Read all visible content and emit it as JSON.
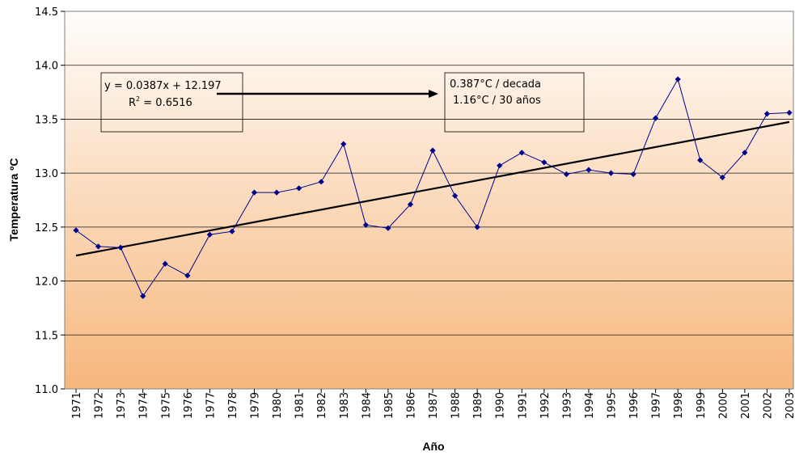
{
  "chart_data": {
    "type": "line",
    "xlabel": "Año",
    "ylabel": "Temperatura ºC",
    "ylim": [
      11.0,
      14.5
    ],
    "yticks": [
      "11.0",
      "11.5",
      "12.0",
      "12.5",
      "13.0",
      "13.5",
      "14.0",
      "14.5"
    ],
    "grid": true,
    "background": "orange gradient (light at top, orange at bottom)",
    "series_color": "#00008b",
    "trend_color": "#000000",
    "categories": [
      "1971",
      "1972",
      "1973",
      "1974",
      "1975",
      "1976",
      "1977",
      "1978",
      "1979",
      "1980",
      "1981",
      "1982",
      "1983",
      "1984",
      "1985",
      "1986",
      "1987",
      "1988",
      "1989",
      "1990",
      "1991",
      "1992",
      "1993",
      "1994",
      "1995",
      "1996",
      "1997",
      "1998",
      "1999",
      "2000",
      "2001",
      "2002",
      "2003"
    ],
    "series": [
      {
        "values": [
          12.47,
          12.32,
          12.31,
          11.86,
          12.16,
          12.05,
          12.43,
          12.46,
          12.82,
          12.82,
          12.86,
          12.92,
          13.27,
          12.52,
          12.49,
          12.71,
          13.21,
          12.79,
          12.5,
          13.07,
          13.19,
          13.1,
          12.99,
          13.03,
          13.0,
          12.99,
          13.51,
          13.87,
          13.12,
          12.96,
          13.19,
          13.55,
          13.56
        ]
      }
    ],
    "trendline": {
      "start": {
        "x": "1971",
        "y": 12.2357
      },
      "end": {
        "x": "2003",
        "y": 13.4741
      }
    },
    "annotations": {
      "equation": "y = 0.0387x + 12.197",
      "r2_prefix": "R",
      "r2_sup": "2",
      "r2_value": " = 0.6516",
      "rate_decade": "0.387°C / decada",
      "rate_30": "1.16°C / 30 años"
    }
  }
}
